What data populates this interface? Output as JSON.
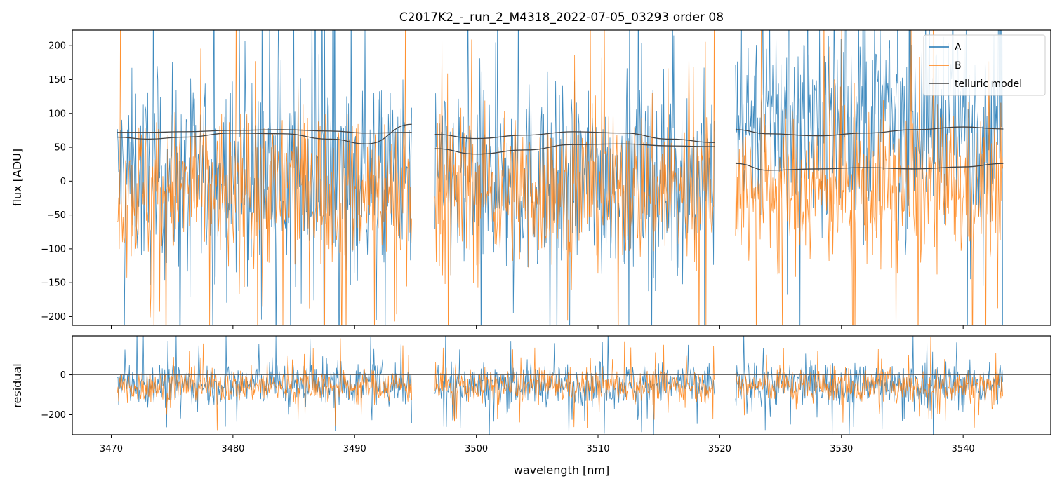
{
  "chart_data": [
    {
      "type": "line",
      "panel": "flux",
      "title": "C2017K2_-_run_2_M4318_2022-07-05_03293  order 08",
      "xlabel": "",
      "ylabel": "flux [ADU]",
      "xlim": [
        3466.8,
        3547.2
      ],
      "ylim": [
        -213,
        223
      ],
      "yticks": [
        -200,
        -150,
        -100,
        -50,
        0,
        50,
        100,
        150,
        200
      ],
      "segments": [
        [
          3470.5,
          3494.7
        ],
        [
          3496.6,
          3519.6
        ],
        [
          3521.3,
          3543.3
        ]
      ],
      "legend": {
        "placement": "top-right",
        "entries": [
          "A",
          "B",
          "telluric model"
        ]
      },
      "series": [
        {
          "name": "A",
          "color": "#1f77b4",
          "kind": "noise",
          "center": 5,
          "spread": 120,
          "high_side_segment_3": 95
        },
        {
          "name": "B",
          "color": "#ff7f0e",
          "kind": "noise",
          "center": -10,
          "spread": 95
        },
        {
          "name": "telluric model",
          "color": "#444444",
          "kind": "curves",
          "curves": [
            {
              "x": [
                3470.5,
                3473,
                3476,
                3480,
                3484,
                3488,
                3491,
                3494.7
              ],
              "y": [
                72,
                72,
                73,
                75,
                76,
                74,
                71,
                72
              ]
            },
            {
              "x": [
                3470.5,
                3473,
                3476,
                3480,
                3484,
                3488,
                3491,
                3494.7
              ],
              "y": [
                65,
                62,
                65,
                71,
                70,
                62,
                55,
                84
              ]
            },
            {
              "x": [
                3496.6,
                3500,
                3504,
                3508,
                3512,
                3516,
                3519.6
              ],
              "y": [
                69,
                63,
                68,
                73,
                71,
                62,
                57
              ]
            },
            {
              "x": [
                3496.6,
                3500,
                3504,
                3508,
                3512,
                3516,
                3519.6
              ],
              "y": [
                48,
                40,
                46,
                54,
                55,
                52,
                51
              ]
            },
            {
              "x": [
                3521.3,
                3524,
                3528,
                3532,
                3536,
                3540,
                3543.3
              ],
              "y": [
                76,
                70,
                67,
                71,
                76,
                80,
                77
              ]
            },
            {
              "x": [
                3521.3,
                3524,
                3528,
                3532,
                3536,
                3540,
                3543.3
              ],
              "y": [
                26,
                16,
                18,
                20,
                18,
                21,
                26
              ]
            }
          ]
        }
      ]
    },
    {
      "type": "line",
      "panel": "residual",
      "xlabel": "wavelength [nm]",
      "ylabel": "residual",
      "xlim": [
        3466.8,
        3547.2
      ],
      "ylim": [
        -300,
        195
      ],
      "yticks": [
        -200,
        0
      ],
      "xticks": [
        3470,
        3480,
        3490,
        3500,
        3510,
        3520,
        3530,
        3540
      ],
      "zero_line": true,
      "segments": [
        [
          3470.5,
          3494.7
        ],
        [
          3496.6,
          3519.6
        ],
        [
          3521.3,
          3543.3
        ]
      ],
      "series": [
        {
          "name": "A",
          "color": "#1f77b4",
          "kind": "noise",
          "center": -45,
          "spread": 90
        },
        {
          "name": "B",
          "color": "#ff7f0e",
          "kind": "noise",
          "center": -55,
          "spread": 70
        }
      ]
    }
  ]
}
